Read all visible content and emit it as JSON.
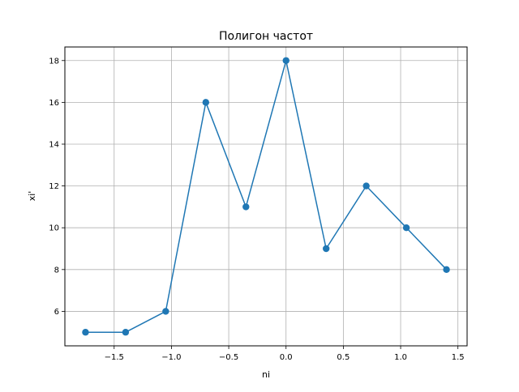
{
  "chart_data": {
    "type": "line",
    "title": "Полигон частот",
    "xlabel": "ni",
    "ylabel": "xi'",
    "xlim": [
      -1.93,
      1.58
    ],
    "ylim": [
      4.35,
      18.65
    ],
    "grid": true,
    "marker": "circle",
    "color": "#1f77b4",
    "x_ticks": [
      -1.5,
      -1.0,
      -0.5,
      0.0,
      0.5,
      1.0,
      1.5
    ],
    "x_tick_labels": [
      "−1.5",
      "−1.0",
      "−0.5",
      "0.0",
      "0.5",
      "1.0",
      "1.5"
    ],
    "y_ticks": [
      6,
      8,
      10,
      12,
      14,
      16,
      18
    ],
    "y_tick_labels": [
      "6",
      "8",
      "10",
      "12",
      "14",
      "16",
      "18"
    ],
    "series": [
      {
        "x": [
          -1.75,
          -1.4,
          -1.05,
          -0.7,
          -0.35,
          0.0,
          0.35,
          0.7,
          1.05,
          1.4
        ],
        "y": [
          5,
          5,
          6,
          16,
          11,
          18,
          9,
          12,
          10,
          8
        ]
      }
    ]
  }
}
